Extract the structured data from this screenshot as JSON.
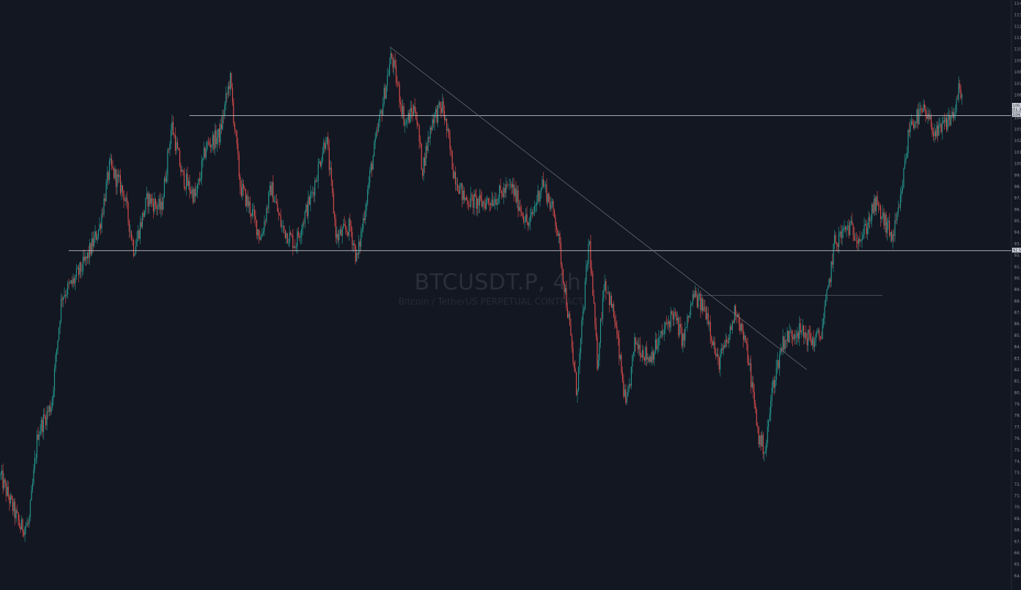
{
  "watermark": {
    "symbol": "BTCUSDT.P, 4h",
    "description": "Bitcoin / TetherUS PERPETUAL CONTRACT"
  },
  "colors": {
    "background": "#131722",
    "up": "#26a69a",
    "down": "#ef5350",
    "line": "#b2b5be",
    "axis_text": "#8a8f9c"
  },
  "chart_data": {
    "type": "candlestick",
    "symbol": "BTCUSDT.P",
    "interval": "4h",
    "ylim": [
      63000,
      114000
    ],
    "y_ticks": [
      64000,
      65000,
      66000,
      67000,
      68000,
      69000,
      70000,
      71000,
      72000,
      73000,
      74000,
      75000,
      76000,
      77000,
      78000,
      79000,
      80000,
      81000,
      82000,
      83000,
      84000,
      85000,
      86000,
      87000,
      88000,
      89000,
      90000,
      91000,
      92000,
      93000,
      94000,
      95000,
      96000,
      97000,
      98000,
      99000,
      100000,
      101000,
      102000,
      103000,
      104000,
      105000,
      106000,
      107000,
      108000,
      109000,
      110000,
      111000,
      112000,
      113000,
      114000
    ],
    "y_tick_labels": [
      "64.0",
      "65.0",
      "66.0",
      "67.0",
      "68.0",
      "69.0",
      "70.0",
      "71.0",
      "72.0",
      "73.0",
      "74.0",
      "75.0",
      "76.0",
      "77.0",
      "78.0",
      "79.0",
      "80.0",
      "81.0",
      "82.0",
      "83.0",
      "84.0",
      "85.0",
      "86.0",
      "87.0",
      "88.0",
      "89.0",
      "90.0",
      "91.0",
      "92.0",
      "93.0",
      "94.0",
      "95.0",
      "96.0",
      "97.0",
      "98.0",
      "99.0",
      "100.0",
      "101.0",
      "102.0",
      "103.0",
      "104.0",
      "105.0",
      "106.0",
      "107.0",
      "108.0",
      "109.0",
      "110.0",
      "111.0",
      "112.0",
      "113.0",
      "114.0"
    ],
    "price_path": [
      [
        0,
        72800
      ],
      [
        30,
        68200
      ],
      [
        42,
        68500
      ],
      [
        55,
        76500
      ],
      [
        75,
        79000
      ],
      [
        90,
        88500
      ],
      [
        105,
        89500
      ],
      [
        125,
        91500
      ],
      [
        145,
        94500
      ],
      [
        160,
        99800
      ],
      [
        180,
        97500
      ],
      [
        195,
        92500
      ],
      [
        215,
        97000
      ],
      [
        235,
        96000
      ],
      [
        250,
        103500
      ],
      [
        265,
        99000
      ],
      [
        285,
        97000
      ],
      [
        300,
        101500
      ],
      [
        320,
        102500
      ],
      [
        335,
        107500
      ],
      [
        350,
        98000
      ],
      [
        365,
        96000
      ],
      [
        380,
        93500
      ],
      [
        395,
        98000
      ],
      [
        410,
        94500
      ],
      [
        430,
        93000
      ],
      [
        455,
        97500
      ],
      [
        475,
        102500
      ],
      [
        490,
        93500
      ],
      [
        510,
        94500
      ],
      [
        520,
        91500
      ],
      [
        540,
        99500
      ],
      [
        555,
        104500
      ],
      [
        570,
        109500
      ],
      [
        590,
        103500
      ],
      [
        605,
        105000
      ],
      [
        615,
        99500
      ],
      [
        630,
        104000
      ],
      [
        645,
        105000
      ],
      [
        660,
        99500
      ],
      [
        675,
        97000
      ],
      [
        700,
        96500
      ],
      [
        720,
        97000
      ],
      [
        745,
        98000
      ],
      [
        770,
        94500
      ],
      [
        790,
        98500
      ],
      [
        810,
        95000
      ],
      [
        825,
        88000
      ],
      [
        840,
        80000
      ],
      [
        858,
        93500
      ],
      [
        870,
        82500
      ],
      [
        880,
        90000
      ],
      [
        895,
        86500
      ],
      [
        912,
        78500
      ],
      [
        925,
        84500
      ],
      [
        945,
        83000
      ],
      [
        960,
        84500
      ],
      [
        980,
        87000
      ],
      [
        995,
        84500
      ],
      [
        1010,
        88500
      ],
      [
        1030,
        87000
      ],
      [
        1045,
        82500
      ],
      [
        1060,
        84500
      ],
      [
        1072,
        87500
      ],
      [
        1090,
        83000
      ],
      [
        1105,
        76000
      ],
      [
        1115,
        75000
      ],
      [
        1125,
        80500
      ],
      [
        1140,
        84500
      ],
      [
        1160,
        85500
      ],
      [
        1185,
        84500
      ],
      [
        1195,
        85000
      ],
      [
        1205,
        88500
      ],
      [
        1215,
        93000
      ],
      [
        1235,
        94500
      ],
      [
        1255,
        93500
      ],
      [
        1275,
        96500
      ],
      [
        1300,
        93500
      ],
      [
        1310,
        96000
      ],
      [
        1325,
        103500
      ],
      [
        1345,
        104500
      ],
      [
        1365,
        102500
      ],
      [
        1390,
        104500
      ],
      [
        1397,
        106500
      ],
      [
        1402,
        105200
      ]
    ],
    "annotations": {
      "horizontal_levels": [
        {
          "price": 104200,
          "from_x": 276
        },
        {
          "price": 92400,
          "from_x": 100
        }
      ],
      "short_level": {
        "price": 88500,
        "from_x": 1010,
        "to_x": 1285
      },
      "trendline": {
        "from": [
          568,
          110200
        ],
        "to": [
          1175,
          82000
        ]
      }
    },
    "price_labels": [
      {
        "text": "105.",
        "price": 105100
      },
      {
        "text": "01:3",
        "price": 104750
      },
      {
        "text": "104.",
        "price": 104300
      },
      {
        "text": "92.5",
        "price": 92450
      }
    ]
  }
}
